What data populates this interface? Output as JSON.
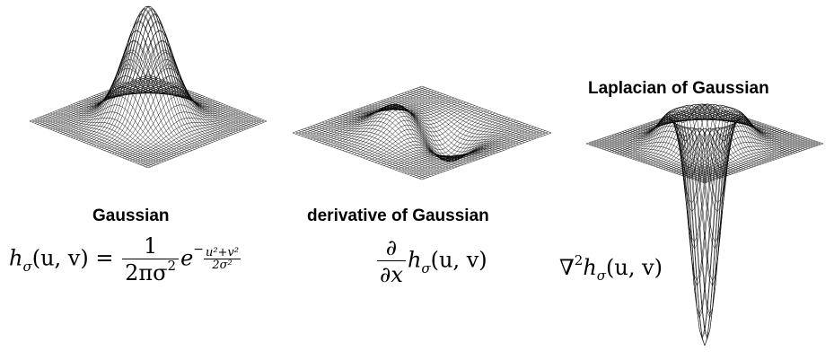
{
  "panels": {
    "gaussian": {
      "label": "Gaussian"
    },
    "derivative": {
      "label": "derivative of Gaussian"
    },
    "log": {
      "label": "Laplacian of Gaussian"
    }
  },
  "formulas": {
    "gaussian": {
      "lhs_h": "h",
      "lhs_sub": "σ",
      "lhs_args": "(u, v) =",
      "coef_num": "1",
      "coef_den": "2πσ",
      "coef_den_sup": "2",
      "base": "e",
      "exp_sign": "−",
      "exp_num": "u²+v²",
      "exp_den": "2σ²"
    },
    "derivative": {
      "op_num": "∂",
      "op_den": "∂x",
      "h": "h",
      "sub": "σ",
      "args": "(u, v)"
    },
    "log": {
      "nabla": "∇",
      "sup": "2",
      "h": "h",
      "sub": "σ",
      "args": "(u, v)"
    }
  },
  "colors": {
    "mesh": "#000000",
    "background": "#ffffff"
  }
}
